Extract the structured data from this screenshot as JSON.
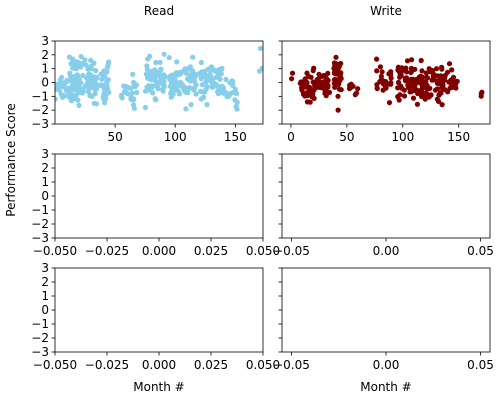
{
  "figure": {
    "ylabel": "Performance Score",
    "xlabel": "Month #"
  },
  "chart_data": [
    {
      "type": "scatter",
      "title": "Read",
      "series": [
        {
          "color": "#87ceeb"
        }
      ],
      "xlim": [
        0,
        173
      ],
      "ylim": [
        -3,
        3
      ],
      "xticks": [
        50,
        100,
        150
      ],
      "yticks": [
        -3,
        -2,
        -1,
        0,
        1,
        2,
        3
      ],
      "xlabel": "",
      "clusters": [
        {
          "x_range": [
            0,
            20
          ],
          "y_center": -0.3,
          "y_spread": 1.0,
          "n": 45
        },
        {
          "x_range": [
            12,
            35
          ],
          "y_center": 0.2,
          "y_spread": 1.4,
          "n": 90
        },
        {
          "x_range": [
            38,
            45
          ],
          "y_center": 0.0,
          "y_spread": 1.4,
          "n": 30
        },
        {
          "x_range": [
            55,
            68
          ],
          "y_center": -0.6,
          "y_spread": 1.0,
          "n": 25
        },
        {
          "x_range": [
            75,
            92
          ],
          "y_center": 0.3,
          "y_spread": 1.1,
          "n": 70
        },
        {
          "x_range": [
            95,
            118
          ],
          "y_center": 0.0,
          "y_spread": 1.2,
          "n": 75
        },
        {
          "x_range": [
            120,
            140
          ],
          "y_center": 0.0,
          "y_spread": 1.2,
          "n": 60
        },
        {
          "x_range": [
            140,
            152
          ],
          "y_center": -0.8,
          "y_spread": 0.8,
          "n": 25
        },
        {
          "x_range": [
            168,
            173
          ],
          "y_center": 1.6,
          "y_spread": 1.2,
          "n": 4
        }
      ]
    },
    {
      "type": "scatter",
      "title": "Write",
      "series": [
        {
          "color": "#800000"
        }
      ],
      "xlim": [
        -8,
        178
      ],
      "ylim": [
        -3,
        3
      ],
      "xticks": [
        0,
        50,
        100,
        150
      ],
      "yticks": [
        -3,
        -2,
        -1,
        0,
        1,
        2,
        3
      ],
      "xlabel": "",
      "clusters": [
        {
          "x_range": [
            0,
            3
          ],
          "y_center": 0.5,
          "y_spread": 0.3,
          "n": 2
        },
        {
          "x_range": [
            8,
            25
          ],
          "y_center": -0.3,
          "y_spread": 1.1,
          "n": 55
        },
        {
          "x_range": [
            25,
            35
          ],
          "y_center": -0.1,
          "y_spread": 1.0,
          "n": 25
        },
        {
          "x_range": [
            38,
            45
          ],
          "y_center": 0.2,
          "y_spread": 1.4,
          "n": 35
        },
        {
          "x_range": [
            52,
            60
          ],
          "y_center": -0.3,
          "y_spread": 0.7,
          "n": 8
        },
        {
          "x_range": [
            75,
            90
          ],
          "y_center": 0.0,
          "y_spread": 1.0,
          "n": 25
        },
        {
          "x_range": [
            95,
            120
          ],
          "y_center": 0.0,
          "y_spread": 1.2,
          "n": 80
        },
        {
          "x_range": [
            120,
            140
          ],
          "y_center": 0.0,
          "y_spread": 1.2,
          "n": 55
        },
        {
          "x_range": [
            140,
            150
          ],
          "y_center": -0.2,
          "y_spread": 0.9,
          "n": 15
        },
        {
          "x_range": [
            170,
            172
          ],
          "y_center": -0.8,
          "y_spread": 0.2,
          "n": 3
        }
      ]
    },
    {
      "type": "scatter",
      "title": "",
      "xlim": [
        -0.05,
        0.05
      ],
      "ylim": [
        -3,
        3
      ],
      "xticks": [
        -0.05,
        -0.025,
        0.0,
        0.025,
        0.05
      ],
      "xtick_labels": [
        "−0.050",
        "−0.025",
        "0.000",
        "0.025",
        "0.050"
      ],
      "yticks": [
        -3,
        -2,
        -1,
        0,
        1,
        2,
        3
      ],
      "xlabel": ""
    },
    {
      "type": "scatter",
      "title": "",
      "xlim": [
        -0.055,
        0.055
      ],
      "ylim": [
        -3,
        3
      ],
      "xticks": [
        -0.05,
        0.0,
        0.05
      ],
      "xtick_labels": [
        "−0.05",
        "0.00",
        "0.05"
      ],
      "yticks": [
        -3,
        -2,
        -1,
        0,
        1,
        2,
        3
      ],
      "xlabel": ""
    },
    {
      "type": "scatter",
      "title": "",
      "xlim": [
        -0.05,
        0.05
      ],
      "ylim": [
        -3,
        3
      ],
      "xticks": [
        -0.05,
        -0.025,
        0.0,
        0.025,
        0.05
      ],
      "xtick_labels": [
        "−0.050",
        "−0.025",
        "0.000",
        "0.025",
        "0.050"
      ],
      "yticks": [
        -3,
        -2,
        -1,
        0,
        1,
        2,
        3
      ],
      "xlabel": "Month #"
    },
    {
      "type": "scatter",
      "title": "",
      "xlim": [
        -0.055,
        0.055
      ],
      "ylim": [
        -3,
        3
      ],
      "xticks": [
        -0.05,
        0.0,
        0.05
      ],
      "xtick_labels": [
        "−0.05",
        "0.00",
        "0.05"
      ],
      "yticks": [
        -3,
        -2,
        -1,
        0,
        1,
        2,
        3
      ],
      "xlabel": "Month #"
    }
  ]
}
